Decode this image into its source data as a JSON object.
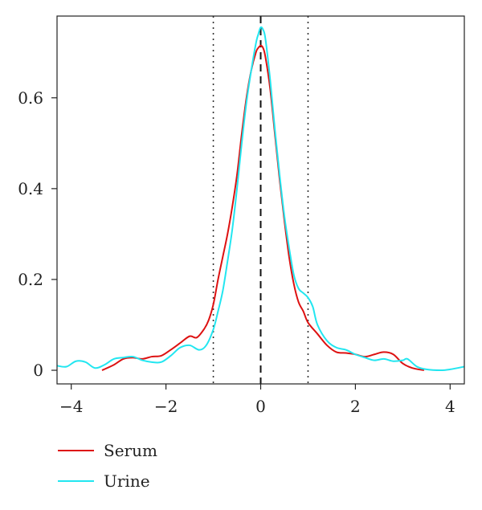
{
  "chart_data": {
    "type": "line",
    "title": "",
    "xlabel": "",
    "ylabel": "",
    "xlim": [
      -4.3,
      4.3
    ],
    "ylim": [
      -0.03,
      0.78
    ],
    "x_ticks": [
      -4,
      -2,
      0,
      2,
      4
    ],
    "x_tick_labels": [
      "−4",
      "−2",
      "0",
      "2",
      "4"
    ],
    "y_ticks": [
      0,
      0.2,
      0.4,
      0.6
    ],
    "y_tick_labels": [
      "0",
      "0.2",
      "0.4",
      "0.6"
    ],
    "grid": false,
    "legend_position": "bottom-left",
    "reference_lines": [
      {
        "x": -1,
        "style": "dotted",
        "color": "#333333"
      },
      {
        "x": 0,
        "style": "dashed",
        "color": "#111111"
      },
      {
        "x": 1,
        "style": "dotted",
        "color": "#333333"
      }
    ],
    "series": [
      {
        "name": "Serum",
        "color": "#dd1111",
        "x": [
          -3.35,
          -3.1,
          -2.9,
          -2.7,
          -2.5,
          -2.3,
          -2.1,
          -1.9,
          -1.7,
          -1.5,
          -1.35,
          -1.2,
          -1.1,
          -1.0,
          -0.9,
          -0.8,
          -0.7,
          -0.6,
          -0.5,
          -0.4,
          -0.3,
          -0.2,
          -0.1,
          -0.05,
          0.0,
          0.05,
          0.1,
          0.2,
          0.3,
          0.4,
          0.5,
          0.6,
          0.7,
          0.8,
          0.9,
          1.0,
          1.2,
          1.4,
          1.6,
          1.8,
          2.0,
          2.2,
          2.4,
          2.6,
          2.8,
          3.0,
          3.2,
          3.45
        ],
        "y": [
          0.0,
          0.012,
          0.025,
          0.028,
          0.025,
          0.03,
          0.032,
          0.045,
          0.06,
          0.075,
          0.072,
          0.09,
          0.11,
          0.145,
          0.2,
          0.25,
          0.3,
          0.36,
          0.43,
          0.52,
          0.6,
          0.66,
          0.7,
          0.71,
          0.715,
          0.71,
          0.69,
          0.62,
          0.52,
          0.42,
          0.33,
          0.25,
          0.19,
          0.15,
          0.13,
          0.105,
          0.08,
          0.055,
          0.04,
          0.038,
          0.035,
          0.03,
          0.035,
          0.04,
          0.035,
          0.015,
          0.005,
          0.0
        ]
      },
      {
        "name": "Urine",
        "color": "#22e6f0",
        "x": [
          -4.3,
          -4.1,
          -3.9,
          -3.7,
          -3.5,
          -3.3,
          -3.1,
          -2.9,
          -2.7,
          -2.5,
          -2.3,
          -2.1,
          -1.9,
          -1.7,
          -1.5,
          -1.3,
          -1.15,
          -1.0,
          -0.9,
          -0.8,
          -0.7,
          -0.6,
          -0.5,
          -0.4,
          -0.3,
          -0.2,
          -0.1,
          -0.05,
          0.0,
          0.05,
          0.1,
          0.2,
          0.3,
          0.4,
          0.5,
          0.6,
          0.7,
          0.8,
          0.9,
          1.0,
          1.1,
          1.2,
          1.4,
          1.6,
          1.8,
          2.0,
          2.2,
          2.4,
          2.6,
          2.8,
          3.0,
          3.1,
          3.3,
          3.5,
          3.8,
          4.0,
          4.3
        ],
        "y": [
          0.01,
          0.008,
          0.02,
          0.018,
          0.005,
          0.012,
          0.025,
          0.028,
          0.03,
          0.022,
          0.018,
          0.018,
          0.032,
          0.05,
          0.055,
          0.045,
          0.055,
          0.09,
          0.13,
          0.175,
          0.24,
          0.31,
          0.4,
          0.5,
          0.59,
          0.66,
          0.72,
          0.74,
          0.755,
          0.75,
          0.73,
          0.64,
          0.53,
          0.43,
          0.34,
          0.27,
          0.21,
          0.18,
          0.17,
          0.16,
          0.14,
          0.1,
          0.065,
          0.05,
          0.045,
          0.035,
          0.028,
          0.022,
          0.025,
          0.02,
          0.022,
          0.025,
          0.008,
          0.002,
          0.0,
          0.002,
          0.008
        ]
      }
    ]
  }
}
